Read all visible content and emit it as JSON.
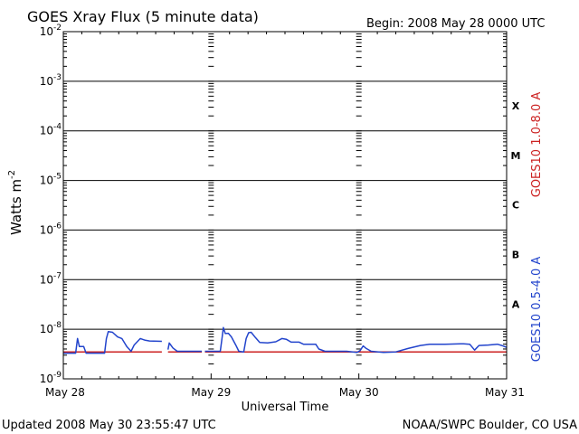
{
  "chart_data": {
    "type": "line",
    "title": "GOES Xray Flux (5 minute data)",
    "begin_label": "Begin:  2008 May 28 0000 UTC",
    "ylabel": "Watts m",
    "ylabel_sup": "-2",
    "xlabel": "Universal Time",
    "yscale": "log",
    "ylim": [
      1e-09,
      0.01
    ],
    "grid": true,
    "y_ticks": [
      {
        "base": "10",
        "exp": "-2",
        "value": 0.01
      },
      {
        "base": "10",
        "exp": "-3",
        "value": 0.001
      },
      {
        "base": "10",
        "exp": "-4",
        "value": 0.0001
      },
      {
        "base": "10",
        "exp": "-5",
        "value": 1e-05
      },
      {
        "base": "10",
        "exp": "-6",
        "value": 1e-06
      },
      {
        "base": "10",
        "exp": "-7",
        "value": 1e-07
      },
      {
        "base": "10",
        "exp": "-8",
        "value": 1e-08
      },
      {
        "base": "10",
        "exp": "-9",
        "value": 1e-09
      }
    ],
    "x_range_hours": [
      0,
      72
    ],
    "x_ticks": [
      {
        "label": "May 28",
        "hour": 0
      },
      {
        "label": "May 29",
        "hour": 24
      },
      {
        "label": "May 30",
        "hour": 48
      },
      {
        "label": "May 31",
        "hour": 72
      }
    ],
    "flare_classes": [
      {
        "label": "X",
        "value": 0.00032
      },
      {
        "label": "M",
        "value": 3.2e-05
      },
      {
        "label": "C",
        "value": 3.2e-06
      },
      {
        "label": "B",
        "value": 3.2e-07
      },
      {
        "label": "A",
        "value": 3.2e-08
      }
    ],
    "series": [
      {
        "name": "GOES10 1.0-8.0 A",
        "color": "#cc2222",
        "segments": [
          [
            [
              0,
              3.5e-09
            ],
            [
              16,
              3.5e-09
            ]
          ],
          [
            [
              17,
              3.5e-09
            ],
            [
              22.5,
              3.5e-09
            ]
          ],
          [
            [
              23,
              3.5e-09
            ],
            [
              72,
              3.5e-09
            ]
          ]
        ]
      },
      {
        "name": "GOES10 0.5-4.0 A",
        "color": "#2244cc",
        "segments": [
          [
            [
              0,
              3.3e-09
            ],
            [
              2,
              3.3e-09
            ],
            [
              2.3,
              6.5e-09
            ],
            [
              2.6,
              4.5e-09
            ],
            [
              3.3,
              4.5e-09
            ],
            [
              3.7,
              3.3e-09
            ],
            [
              6.7,
              3.3e-09
            ],
            [
              7,
              6.5e-09
            ],
            [
              7.3,
              9e-09
            ],
            [
              8,
              8.7e-09
            ],
            [
              8.8,
              7e-09
            ],
            [
              9.5,
              6.5e-09
            ],
            [
              10.3,
              4.5e-09
            ],
            [
              11,
              3.6e-09
            ],
            [
              11.5,
              4.8e-09
            ],
            [
              12.5,
              6.5e-09
            ],
            [
              13.3,
              6e-09
            ],
            [
              14,
              5.8e-09
            ],
            [
              16,
              5.7e-09
            ]
          ],
          [
            [
              17,
              3.9e-09
            ],
            [
              17.2,
              5.3e-09
            ],
            [
              17.8,
              4.2e-09
            ],
            [
              18.5,
              3.6e-09
            ],
            [
              22.5,
              3.6e-09
            ]
          ],
          [
            [
              23,
              3.6e-09
            ],
            [
              25.5,
              3.6e-09
            ],
            [
              25.8,
              7e-09
            ],
            [
              26,
              1.08e-08
            ],
            [
              26.3,
              8.2e-09
            ],
            [
              26.8,
              8.3e-09
            ],
            [
              27.3,
              7e-09
            ],
            [
              28,
              4.8e-09
            ],
            [
              28.5,
              3.6e-09
            ],
            [
              29.3,
              3.5e-09
            ],
            [
              29.7,
              6.5e-09
            ],
            [
              30.1,
              8.5e-09
            ],
            [
              30.5,
              8.7e-09
            ],
            [
              31.2,
              6.8e-09
            ],
            [
              31.9,
              5.4e-09
            ],
            [
              33.2,
              5.3e-09
            ],
            [
              34.5,
              5.6e-09
            ],
            [
              35.5,
              6.5e-09
            ],
            [
              36.2,
              6.3e-09
            ],
            [
              37,
              5.5e-09
            ],
            [
              38.3,
              5.5e-09
            ],
            [
              39,
              5e-09
            ],
            [
              41,
              5e-09
            ],
            [
              41.5,
              4e-09
            ],
            [
              42.5,
              3.6e-09
            ],
            [
              46,
              3.6e-09
            ],
            [
              47.7,
              3.4e-09
            ],
            [
              48.2,
              3.7e-09
            ],
            [
              48.7,
              4.6e-09
            ],
            [
              49.2,
              4.1e-09
            ],
            [
              50,
              3.6e-09
            ],
            [
              52,
              3.4e-09
            ],
            [
              54,
              3.5e-09
            ],
            [
              56,
              4.1e-09
            ],
            [
              58,
              4.7e-09
            ],
            [
              59.5,
              5e-09
            ],
            [
              62,
              5e-09
            ],
            [
              65,
              5.1e-09
            ],
            [
              66,
              5e-09
            ],
            [
              66.8,
              3.8e-09
            ],
            [
              67.5,
              4.7e-09
            ],
            [
              69,
              4.8e-09
            ],
            [
              70.5,
              5e-09
            ],
            [
              71.2,
              4.7e-09
            ],
            [
              72,
              4.3e-09
            ]
          ]
        ]
      }
    ]
  },
  "footer": {
    "updated": "Updated 2008 May 30 23:55:47 UTC",
    "credit": "NOAA/SWPC Boulder, CO USA"
  }
}
